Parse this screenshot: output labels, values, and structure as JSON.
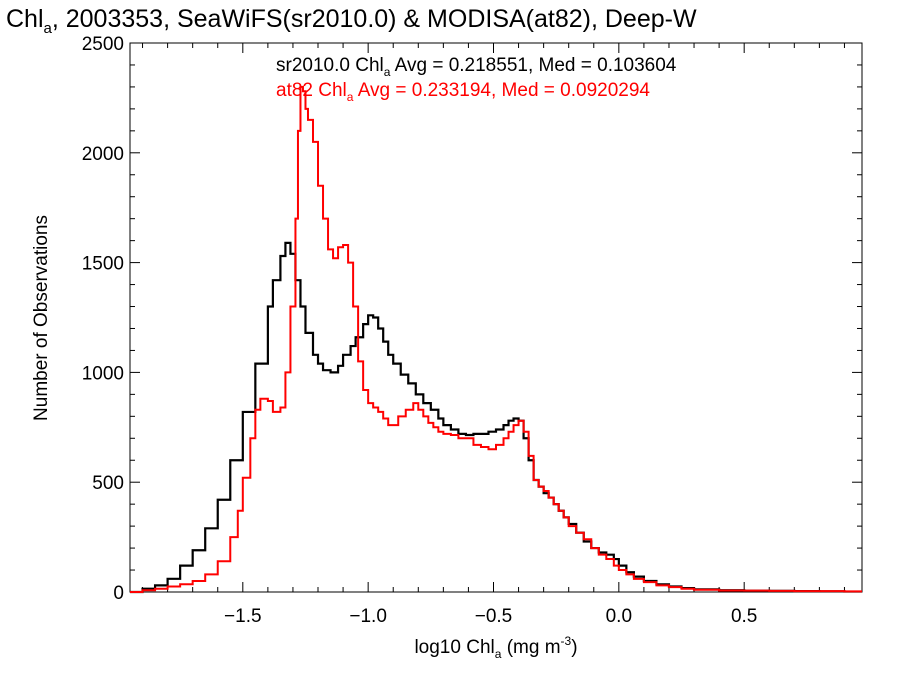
{
  "chart_data": {
    "type": "line",
    "title": "Chl",
    "title_sub": "a",
    "title_rest": ", 2003353, SeaWiFS(sr2010.0) & MODISA(at82), Deep-W",
    "xlabel_main": "log10 Chl",
    "xlabel_sub": "a",
    "xlabel_units": " (mg m",
    "xlabel_sup": "-3",
    "xlabel_close": ")",
    "ylabel": "Number of Observations",
    "xlim": [
      -1.95,
      0.97
    ],
    "ylim": [
      0,
      2500
    ],
    "x_ticks": [
      -1.5,
      -1.0,
      -0.5,
      0.0,
      0.5
    ],
    "x_tick_labels": [
      "−1.5",
      "−1.0",
      "−0.5",
      "0.0",
      "0.5"
    ],
    "y_ticks": [
      0,
      500,
      1000,
      1500,
      2000,
      2500
    ],
    "y_tick_labels": [
      "0",
      "500",
      "1000",
      "1500",
      "2000",
      "2500"
    ],
    "grid": false,
    "legend_position": "top-center",
    "series": [
      {
        "name": "sr2010.0",
        "legend_prefix": "sr2010.0 Chl",
        "legend_sub": "a",
        "legend_suffix": " Avg = 0.218551, Med = 0.103604",
        "color": "#000000",
        "x": [
          -1.95,
          -1.9,
          -1.85,
          -1.8,
          -1.75,
          -1.7,
          -1.65,
          -1.6,
          -1.55,
          -1.5,
          -1.45,
          -1.4,
          -1.38,
          -1.35,
          -1.33,
          -1.31,
          -1.29,
          -1.27,
          -1.25,
          -1.22,
          -1.2,
          -1.18,
          -1.15,
          -1.12,
          -1.1,
          -1.07,
          -1.05,
          -1.02,
          -1.0,
          -0.98,
          -0.96,
          -0.94,
          -0.92,
          -0.9,
          -0.87,
          -0.84,
          -0.81,
          -0.78,
          -0.75,
          -0.72,
          -0.7,
          -0.67,
          -0.64,
          -0.61,
          -0.58,
          -0.55,
          -0.52,
          -0.49,
          -0.46,
          -0.44,
          -0.42,
          -0.4,
          -0.38,
          -0.36,
          -0.34,
          -0.32,
          -0.3,
          -0.28,
          -0.26,
          -0.24,
          -0.22,
          -0.2,
          -0.17,
          -0.14,
          -0.11,
          -0.08,
          -0.05,
          -0.02,
          0.0,
          0.03,
          0.06,
          0.1,
          0.15,
          0.2,
          0.25,
          0.3,
          0.4,
          0.5,
          0.6,
          0.7,
          0.8,
          0.9,
          0.97
        ],
        "y": [
          0,
          15,
          30,
          60,
          120,
          190,
          290,
          420,
          600,
          820,
          1040,
          1300,
          1420,
          1530,
          1590,
          1540,
          1420,
          1300,
          1180,
          1080,
          1040,
          1010,
          1000,
          1030,
          1080,
          1120,
          1160,
          1220,
          1260,
          1250,
          1200,
          1140,
          1080,
          1040,
          990,
          950,
          900,
          860,
          830,
          790,
          760,
          740,
          720,
          715,
          720,
          720,
          730,
          740,
          760,
          780,
          790,
          780,
          700,
          600,
          510,
          480,
          450,
          430,
          400,
          370,
          340,
          310,
          270,
          230,
          200,
          180,
          170,
          150,
          120,
          90,
          70,
          50,
          35,
          25,
          18,
          12,
          8,
          6,
          5,
          4,
          3,
          2,
          2
        ]
      },
      {
        "name": "at82",
        "legend_prefix": "at82 Chl",
        "legend_sub": "a",
        "legend_suffix": " Avg = 0.233194, Med = 0.0920294",
        "color": "#ff0000",
        "x": [
          -1.95,
          -1.9,
          -1.85,
          -1.8,
          -1.75,
          -1.7,
          -1.65,
          -1.6,
          -1.55,
          -1.52,
          -1.5,
          -1.47,
          -1.45,
          -1.43,
          -1.4,
          -1.38,
          -1.35,
          -1.33,
          -1.31,
          -1.29,
          -1.28,
          -1.27,
          -1.26,
          -1.25,
          -1.24,
          -1.22,
          -1.2,
          -1.18,
          -1.16,
          -1.14,
          -1.12,
          -1.1,
          -1.08,
          -1.06,
          -1.04,
          -1.02,
          -1.0,
          -0.98,
          -0.96,
          -0.94,
          -0.92,
          -0.9,
          -0.88,
          -0.85,
          -0.82,
          -0.8,
          -0.78,
          -0.76,
          -0.74,
          -0.72,
          -0.7,
          -0.67,
          -0.64,
          -0.61,
          -0.58,
          -0.55,
          -0.52,
          -0.49,
          -0.46,
          -0.44,
          -0.42,
          -0.4,
          -0.38,
          -0.36,
          -0.34,
          -0.32,
          -0.3,
          -0.28,
          -0.26,
          -0.24,
          -0.22,
          -0.2,
          -0.17,
          -0.14,
          -0.11,
          -0.08,
          -0.05,
          -0.02,
          0.0,
          0.03,
          0.06,
          0.1,
          0.15,
          0.2,
          0.25,
          0.3,
          0.4,
          0.5,
          0.6,
          0.7,
          0.8,
          0.9,
          0.97
        ],
        "y": [
          0,
          8,
          15,
          25,
          35,
          50,
          80,
          140,
          250,
          370,
          520,
          700,
          830,
          880,
          870,
          820,
          840,
          1000,
          1300,
          1700,
          2100,
          2300,
          2280,
          2200,
          2150,
          2050,
          1850,
          1700,
          1560,
          1520,
          1570,
          1580,
          1500,
          1300,
          1050,
          920,
          860,
          840,
          820,
          790,
          760,
          760,
          800,
          830,
          860,
          830,
          800,
          770,
          750,
          730,
          720,
          715,
          700,
          700,
          670,
          660,
          650,
          670,
          700,
          730,
          760,
          780,
          730,
          620,
          510,
          480,
          460,
          430,
          400,
          370,
          340,
          300,
          270,
          240,
          200,
          170,
          150,
          120,
          100,
          80,
          60,
          45,
          30,
          22,
          15,
          10,
          7,
          6,
          5,
          4,
          4,
          3,
          3
        ]
      }
    ]
  }
}
